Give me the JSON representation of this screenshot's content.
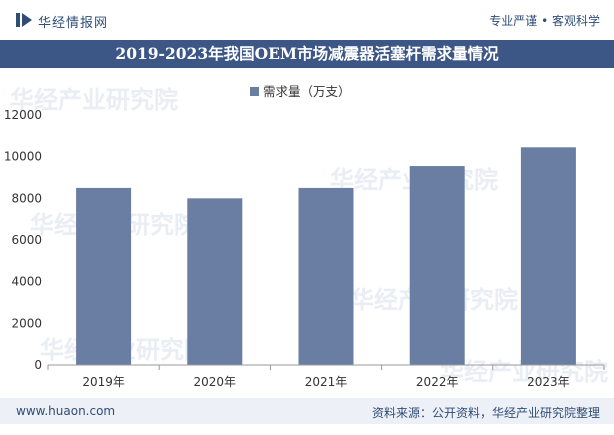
{
  "header": {
    "brand": "华经情报网",
    "tagline": "专业严谨 • 客观科学",
    "title": "2019-2023年我国OEM市场减震器活塞杆需求量情况"
  },
  "footer": {
    "website": "www.huaon.com",
    "source": "资料来源：公开资料，华经产业研究院整理"
  },
  "colors": {
    "bar": "#6a7ea4",
    "title_band": "#3c5786"
  },
  "chart_data": {
    "type": "bar",
    "title": "2019-2023年我国OEM市场减震器活塞杆需求量情况",
    "categories": [
      "2019年",
      "2020年",
      "2021年",
      "2022年",
      "2023年"
    ],
    "series": [
      {
        "name": "需求量（万支）",
        "values": [
          8500,
          8000,
          8500,
          9550,
          10450
        ]
      }
    ],
    "xlabel": "",
    "ylabel": "",
    "ylim": [
      0,
      12000
    ],
    "yticks": [
      "0",
      "2000",
      "4000",
      "6000",
      "8000",
      "10000",
      "12000"
    ],
    "legend": "top-center",
    "grid": false
  }
}
